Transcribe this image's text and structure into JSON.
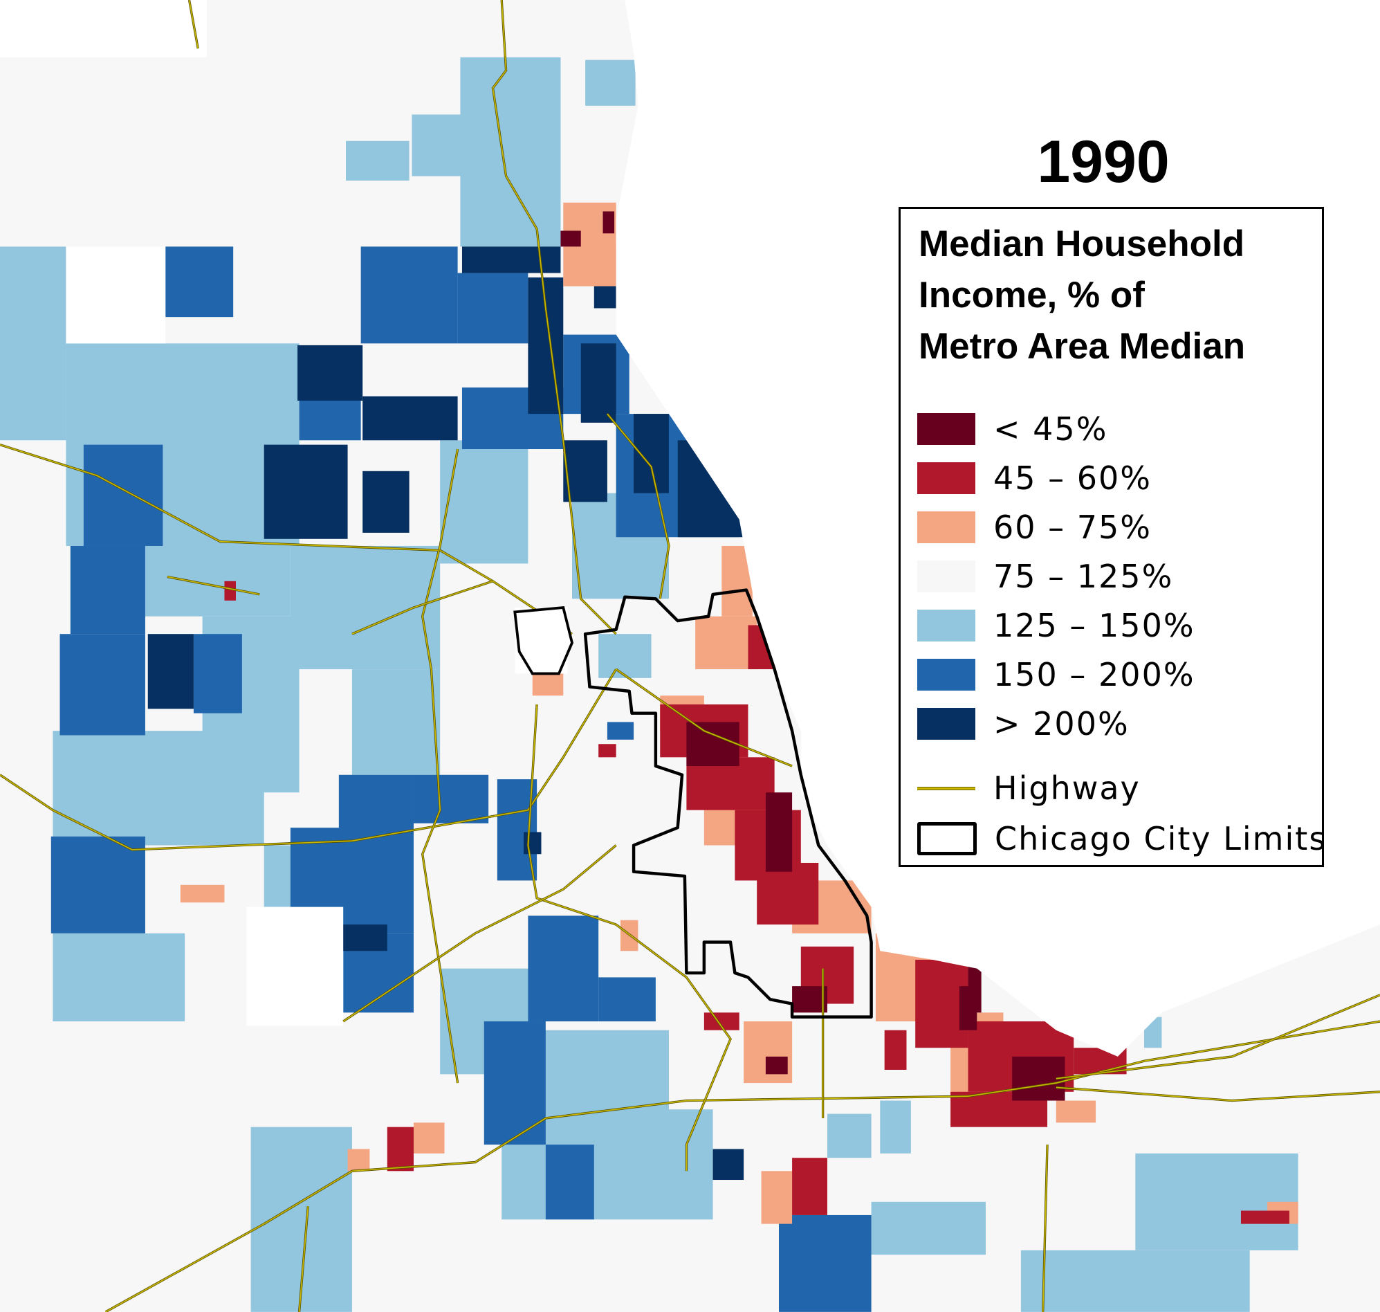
{
  "title": "1990",
  "legend": {
    "title": "Median Household\nIncome, % of\nMetro Area Median",
    "items": [
      {
        "label": "< 45%",
        "color": "#67001f"
      },
      {
        "label": "45 – 60%",
        "color": "#b2182b"
      },
      {
        "label": "60 – 75%",
        "color": "#f4a582"
      },
      {
        "label": "75 – 125%",
        "color": "#f7f7f7"
      },
      {
        "label": "125 – 150%",
        "color": "#92c5de"
      },
      {
        "label": "150 – 200%",
        "color": "#2166ac"
      },
      {
        "label": "> 200%",
        "color": "#053061"
      }
    ],
    "highway_label": "Highway",
    "city_limits_label": "Chicago City Limits",
    "highway_color": "#c9b800"
  }
}
